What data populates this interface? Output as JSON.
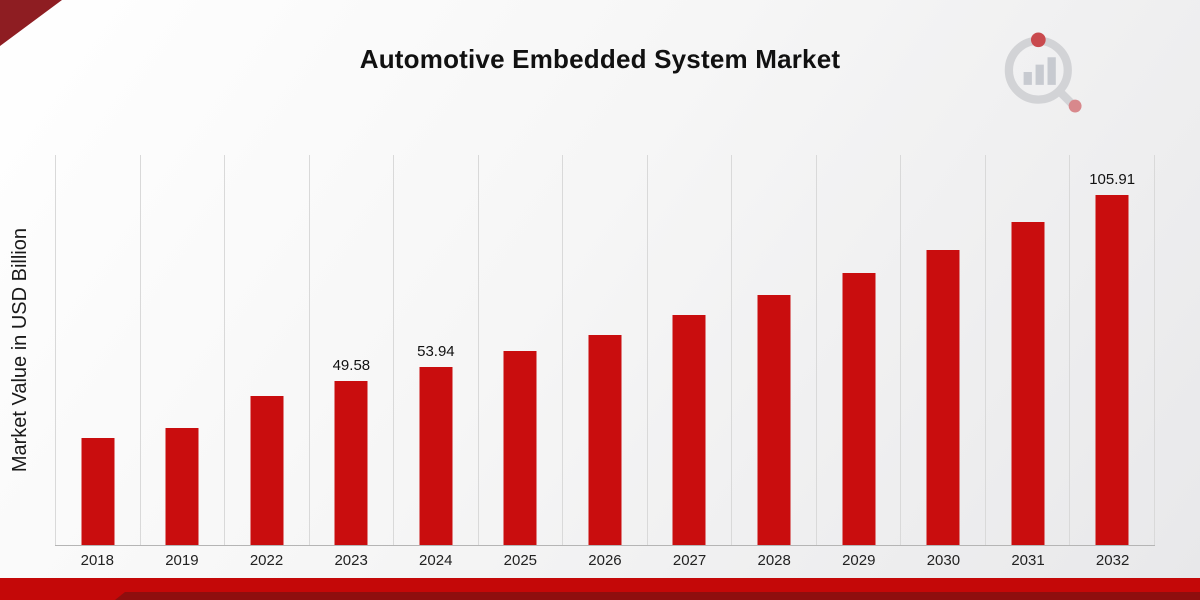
{
  "page": {
    "title": "Automotive Embedded System Market",
    "ylabel": "Market Value in USD Billion",
    "logo": "market-research-future-logo"
  },
  "colors": {
    "bar": "#c90d0e",
    "band": "#c40808",
    "band_dark": "#8e0e0e",
    "corner": "#8e1d22",
    "gridline": "#d9d9d9"
  },
  "chart_data": {
    "type": "bar",
    "title": "Automotive Embedded System Market",
    "xlabel": "",
    "ylabel": "Market Value in USD Billion",
    "categories": [
      "2018",
      "2019",
      "2022",
      "2023",
      "2024",
      "2025",
      "2026",
      "2027",
      "2028",
      "2029",
      "2030",
      "2031",
      "2032"
    ],
    "values": [
      32.4,
      35.5,
      45.2,
      49.58,
      53.94,
      58.8,
      63.6,
      69.7,
      75.8,
      82.4,
      89.4,
      97.6,
      105.91
    ],
    "data_labels": {
      "2023": "49.58",
      "2024": "53.94",
      "2032": "105.91"
    },
    "ylim": [
      0,
      118
    ],
    "grid": "vertical-only",
    "legend": "none",
    "bar_color": "#c90d0e"
  }
}
